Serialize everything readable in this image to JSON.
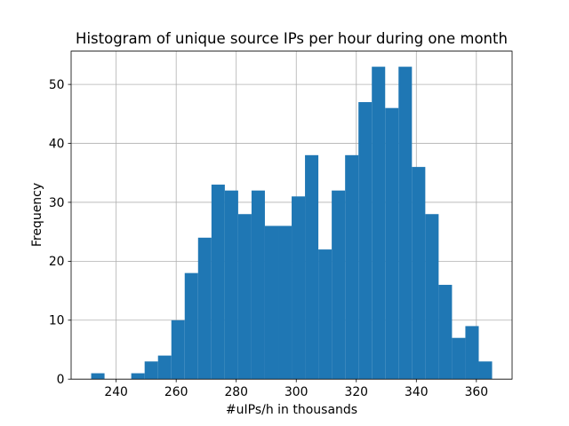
{
  "chart_data": {
    "type": "bar",
    "subtype": "histogram",
    "title": "Histogram of unique source IPs per hour during one month",
    "xlabel": "#uIPs/h in thousands",
    "ylabel": "Frequency",
    "bin_edges": [
      231.68,
      236.13,
      240.58,
      245.03,
      249.49,
      253.94,
      258.39,
      262.84,
      267.29,
      271.75,
      276.2,
      280.65,
      285.1,
      289.55,
      294.01,
      298.46,
      302.91,
      307.36,
      311.81,
      316.27,
      320.72,
      325.17,
      329.62,
      334.07,
      338.53,
      342.98,
      347.43,
      351.88,
      356.33,
      360.79,
      365.24
    ],
    "counts": [
      1,
      0,
      0,
      1,
      3,
      4,
      10,
      18,
      24,
      33,
      32,
      28,
      32,
      26,
      26,
      31,
      38,
      22,
      32,
      38,
      47,
      53,
      46,
      53,
      36,
      28,
      16,
      7,
      9,
      3
    ],
    "total_count": 697,
    "xticks": [
      240,
      260,
      280,
      300,
      320,
      340,
      360
    ],
    "yticks": [
      0,
      10,
      20,
      30,
      40,
      50
    ],
    "xlim": [
      225.0,
      371.9
    ],
    "ylim": [
      0,
      55.65
    ],
    "grid": true,
    "legend": null,
    "bar_color": "#1f77b4",
    "grid_color": "#b0b0b0",
    "axis_color": "#000000",
    "background": "#ffffff"
  }
}
